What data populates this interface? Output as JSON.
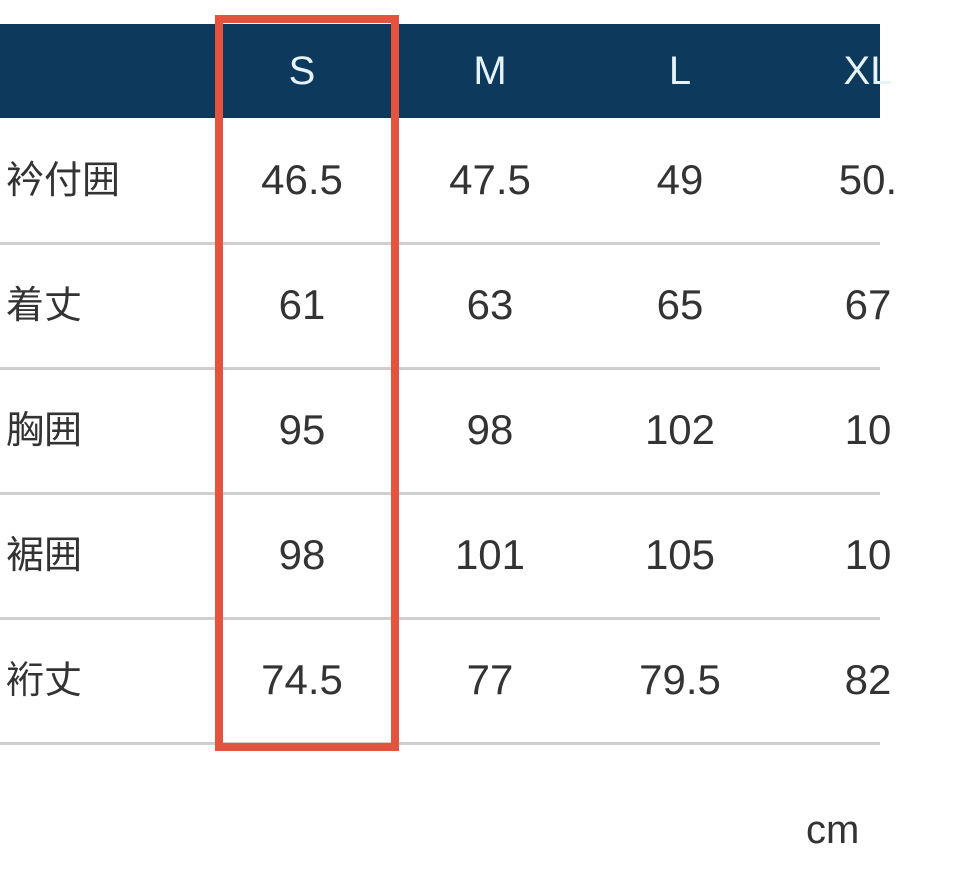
{
  "table": {
    "header": [
      "S",
      "M",
      "L",
      "XL"
    ],
    "rows": [
      {
        "label": "衿付囲",
        "values": [
          "46.5",
          "47.5",
          "49",
          "50."
        ]
      },
      {
        "label": "着丈",
        "values": [
          "61",
          "63",
          "65",
          "67"
        ]
      },
      {
        "label": "胸囲",
        "values": [
          "95",
          "98",
          "102",
          "10"
        ]
      },
      {
        "label": "裾囲",
        "values": [
          "98",
          "101",
          "105",
          "10"
        ]
      },
      {
        "label": "裄丈",
        "values": [
          "74.5",
          "77",
          "79.5",
          "82"
        ]
      }
    ],
    "highlighted_column": "S"
  },
  "unit_note": "cm",
  "colors": {
    "header_bg": "#0d3a5c",
    "highlight": "#e5533f",
    "divider": "#cfcfcf"
  }
}
